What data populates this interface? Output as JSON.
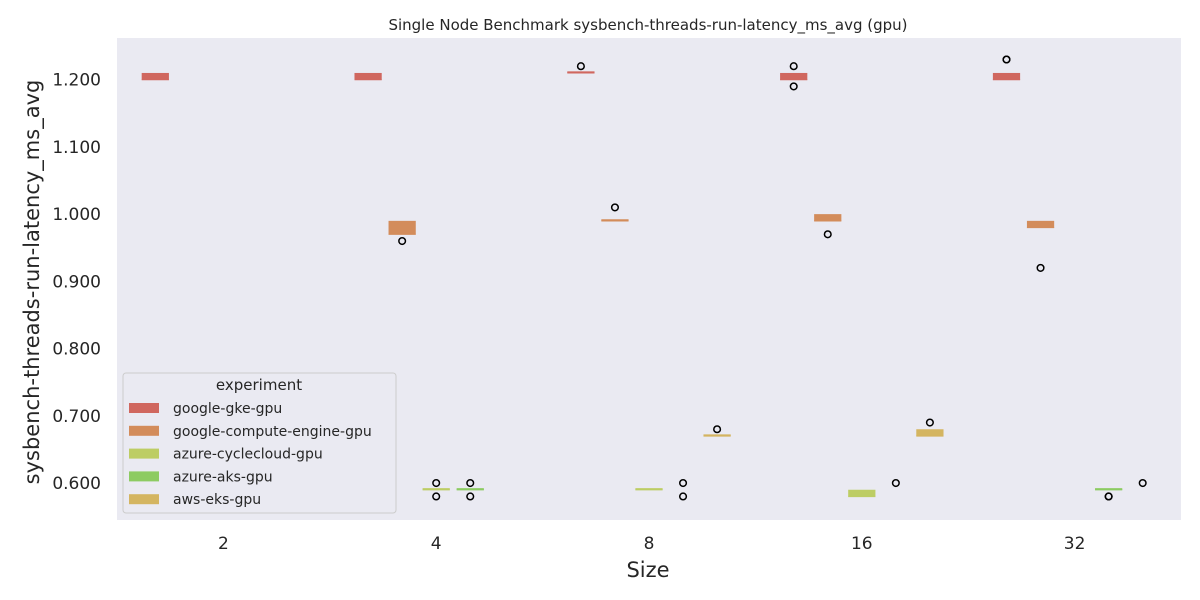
{
  "chart_data": {
    "type": "box",
    "title": "Single Node Benchmark sysbench-threads-run-latency_ms_avg (gpu)",
    "xlabel": "Size",
    "ylabel": "sysbench-threads-run-latency_ms_avg",
    "categories": [
      "2",
      "4",
      "8",
      "16",
      "32"
    ],
    "ylim": [
      0.545,
      1.262
    ],
    "yticks": [
      0.6,
      0.7,
      0.8,
      0.9,
      1.0,
      1.1,
      1.2
    ],
    "ytick_labels": [
      "0.600",
      "0.700",
      "0.800",
      "0.900",
      "1.000",
      "1.100",
      "1.200"
    ],
    "grid": false,
    "background": "#eaeaf2",
    "legend": {
      "title": "experiment",
      "position": "bottom-left"
    },
    "series": [
      {
        "name": "google-gke-gpu",
        "color": "#d0675f",
        "boxes": [
          {
            "category": "2",
            "q1": 1.2,
            "q3": 1.21,
            "median": 1.2,
            "outliers": []
          },
          {
            "category": "4",
            "q1": 1.2,
            "q3": 1.21,
            "median": 1.2,
            "outliers": []
          },
          {
            "category": "8",
            "q1": 1.21,
            "q3": 1.21,
            "median": 1.21,
            "outliers": [
              1.22
            ]
          },
          {
            "category": "16",
            "q1": 1.2,
            "q3": 1.21,
            "median": 1.2,
            "outliers": [
              1.19,
              1.22
            ]
          },
          {
            "category": "32",
            "q1": 1.2,
            "q3": 1.21,
            "median": 1.2,
            "outliers": [
              1.23,
              1.23
            ]
          }
        ]
      },
      {
        "name": "google-compute-engine-gpu",
        "color": "#d38c5b",
        "boxes": [
          {
            "category": "2",
            "q1": null,
            "q3": null,
            "median": null,
            "outliers": []
          },
          {
            "category": "4",
            "q1": 0.97,
            "q3": 0.99,
            "median": 0.97,
            "outliers": [
              0.96
            ]
          },
          {
            "category": "8",
            "q1": 0.99,
            "q3": 0.99,
            "median": 0.99,
            "outliers": [
              1.01
            ]
          },
          {
            "category": "16",
            "q1": 0.99,
            "q3": 1.0,
            "median": 0.99,
            "outliers": [
              0.97
            ]
          },
          {
            "category": "32",
            "q1": 0.98,
            "q3": 0.99,
            "median": 0.98,
            "outliers": [
              0.92
            ]
          }
        ]
      },
      {
        "name": "azure-cyclecloud-gpu",
        "color": "#bdcd64",
        "boxes": [
          {
            "category": "2",
            "q1": null,
            "q3": null,
            "median": null,
            "outliers": []
          },
          {
            "category": "4",
            "q1": 0.59,
            "q3": 0.59,
            "median": 0.59,
            "outliers": [
              0.58,
              0.6
            ]
          },
          {
            "category": "8",
            "q1": 0.59,
            "q3": 0.59,
            "median": 0.59,
            "outliers": []
          },
          {
            "category": "16",
            "q1": 0.58,
            "q3": 0.59,
            "median": 0.58,
            "outliers": []
          },
          {
            "category": "32",
            "q1": null,
            "q3": null,
            "median": null,
            "outliers": []
          }
        ]
      },
      {
        "name": "azure-aks-gpu",
        "color": "#8dcb62",
        "boxes": [
          {
            "category": "2",
            "q1": null,
            "q3": null,
            "median": null,
            "outliers": []
          },
          {
            "category": "4",
            "q1": 0.59,
            "q3": 0.59,
            "median": 0.59,
            "outliers": [
              0.58,
              0.6
            ]
          },
          {
            "category": "8",
            "q1": null,
            "q3": null,
            "median": null,
            "outliers": [
              0.58,
              0.6
            ]
          },
          {
            "category": "16",
            "q1": null,
            "q3": null,
            "median": null,
            "outliers": [
              0.6
            ]
          },
          {
            "category": "32",
            "q1": 0.59,
            "q3": 0.59,
            "median": 0.59,
            "outliers": [
              0.58,
              0.58
            ]
          }
        ]
      },
      {
        "name": "aws-eks-gpu",
        "color": "#d4b561",
        "boxes": [
          {
            "category": "2",
            "q1": null,
            "q3": null,
            "median": null,
            "outliers": []
          },
          {
            "category": "4",
            "q1": null,
            "q3": null,
            "median": null,
            "outliers": []
          },
          {
            "category": "8",
            "q1": 0.67,
            "q3": 0.67,
            "median": 0.67,
            "outliers": [
              0.68
            ]
          },
          {
            "category": "16",
            "q1": 0.67,
            "q3": 0.68,
            "median": 0.67,
            "outliers": [
              0.69
            ]
          },
          {
            "category": "32",
            "q1": null,
            "q3": null,
            "median": null,
            "outliers": [
              0.6
            ]
          }
        ]
      }
    ]
  }
}
